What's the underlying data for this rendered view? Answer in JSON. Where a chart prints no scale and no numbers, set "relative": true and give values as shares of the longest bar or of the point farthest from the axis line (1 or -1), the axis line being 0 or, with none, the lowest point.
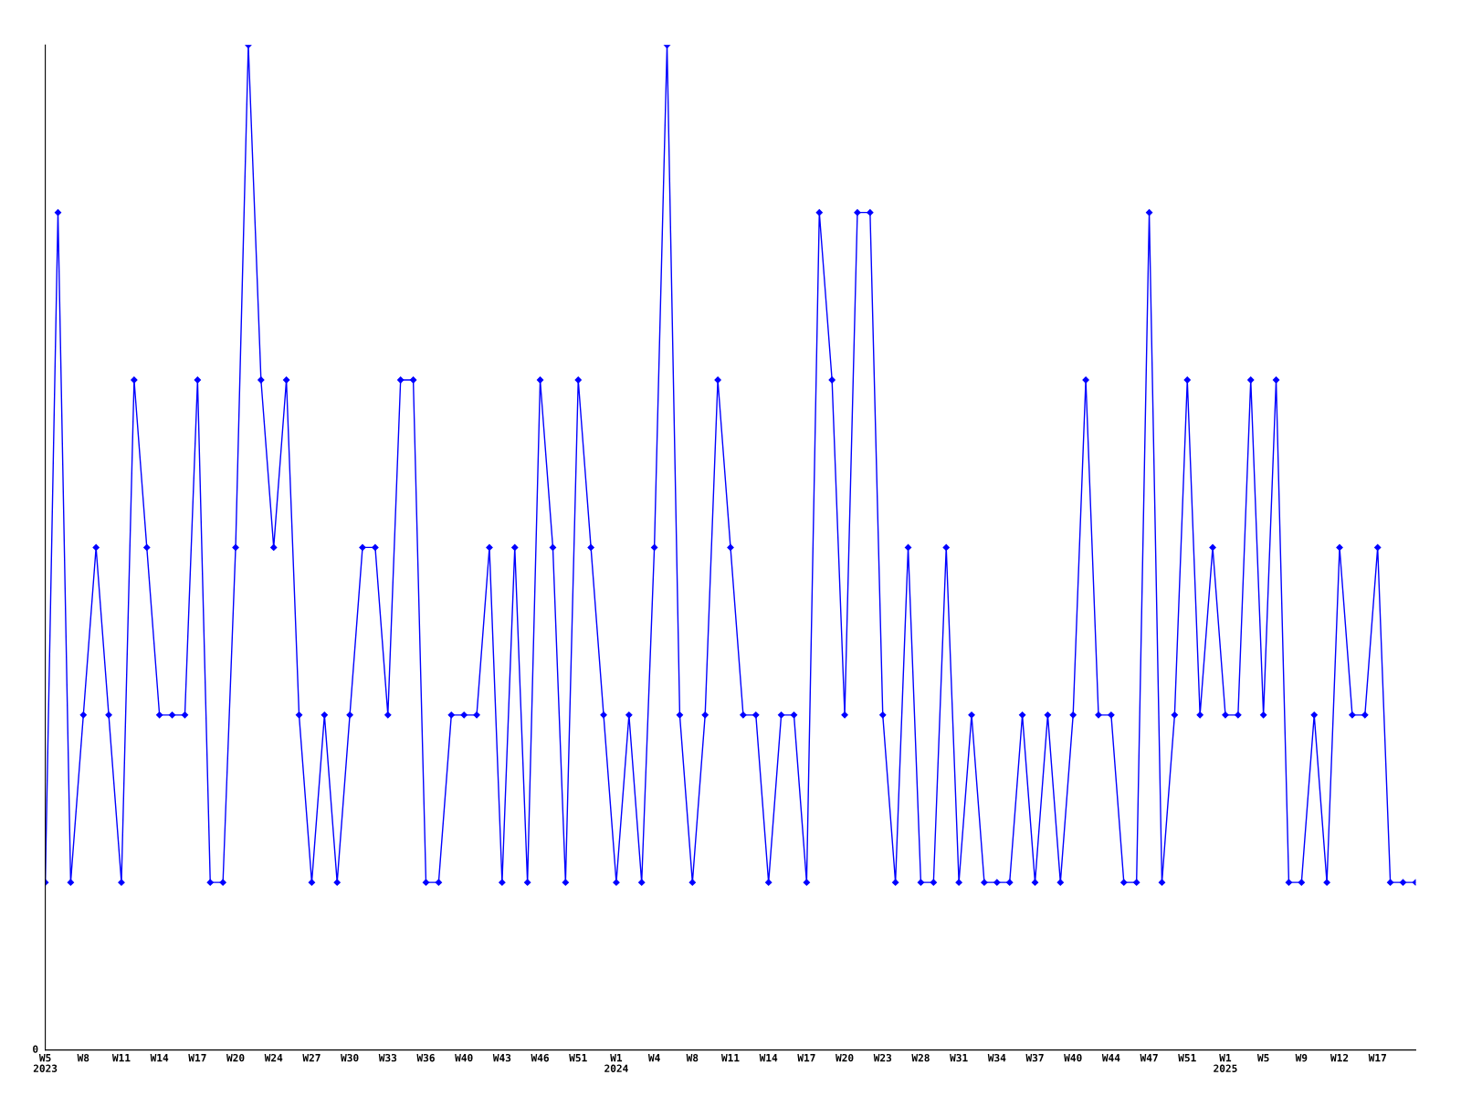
{
  "chart_data": {
    "type": "line",
    "relative": true,
    "marker": "diamond",
    "line_style": "solid",
    "grid": false,
    "legend": false,
    "categories": [
      "W5\n2023",
      null,
      null,
      "W8",
      null,
      null,
      "W11",
      null,
      null,
      "W14",
      null,
      null,
      "W17",
      null,
      null,
      "W20",
      null,
      null,
      "W24",
      null,
      null,
      "W27",
      null,
      null,
      "W30",
      null,
      null,
      "W33",
      null,
      null,
      "W36",
      null,
      null,
      "W40",
      null,
      null,
      "W43",
      null,
      null,
      "W46",
      null,
      null,
      "W51",
      null,
      null,
      "W1\n2024",
      null,
      null,
      "W4",
      null,
      null,
      "W8",
      null,
      null,
      "W11",
      null,
      null,
      "W14",
      null,
      null,
      "W17",
      null,
      null,
      "W20",
      null,
      null,
      "W23",
      null,
      null,
      "W28",
      null,
      null,
      "W31",
      null,
      null,
      "W34",
      null,
      null,
      "W37",
      null,
      null,
      "W40",
      null,
      null,
      "W44",
      null,
      null,
      "W47",
      null,
      null,
      "W51",
      null,
      null,
      "W1\n2025",
      null,
      null,
      "W5",
      null,
      null,
      "W9",
      null,
      null,
      "W12",
      null,
      null,
      "W17",
      null,
      null,
      null
    ],
    "series": [
      {
        "color": "#0000ff",
        "values": [
          0.1667,
          0.8333,
          0.1667,
          0.3333,
          0.5,
          0.3333,
          0.1667,
          0.6667,
          0.5,
          0.3333,
          0.3333,
          0.3333,
          0.6667,
          0.1667,
          0.1667,
          0.5,
          1,
          0.6667,
          0.5,
          0.6667,
          0.3333,
          0.1667,
          0.3333,
          0.1667,
          0.3333,
          0.5,
          0.5,
          0.3333,
          0.6667,
          0.6667,
          0.1667,
          0.1667,
          0.3333,
          0.3333,
          0.3333,
          0.5,
          0.1667,
          0.5,
          0.1667,
          0.6667,
          0.5,
          0.1667,
          0.6667,
          0.5,
          0.3333,
          0.1667,
          0.3333,
          0.1667,
          0.5,
          1,
          0.3333,
          0.1667,
          0.3333,
          0.6667,
          0.5,
          0.3333,
          0.3333,
          0.1667,
          0.3333,
          0.3333,
          0.1667,
          0.8333,
          0.6667,
          0.3333,
          0.8333,
          0.8333,
          0.3333,
          0.1667,
          0.5,
          0.1667,
          0.1667,
          0.5,
          0.1667,
          0.3333,
          0.1667,
          0.1667,
          0.1667,
          0.3333,
          0.1667,
          0.3333,
          0.1667,
          0.3333,
          0.6667,
          0.3333,
          0.3333,
          0.1667,
          0.1667,
          0.8333,
          0.1667,
          0.3333,
          0.6667,
          0.3333,
          0.5,
          0.3333,
          0.3333,
          0.6667,
          0.3333,
          0.6667,
          0.1667,
          0.1667,
          0.3333,
          0.1667,
          0.5,
          0.3333,
          0.3333,
          0.5,
          0.1667,
          0.1667,
          0.1667
        ]
      }
    ],
    "annotations": [
      "0"
    ]
  }
}
